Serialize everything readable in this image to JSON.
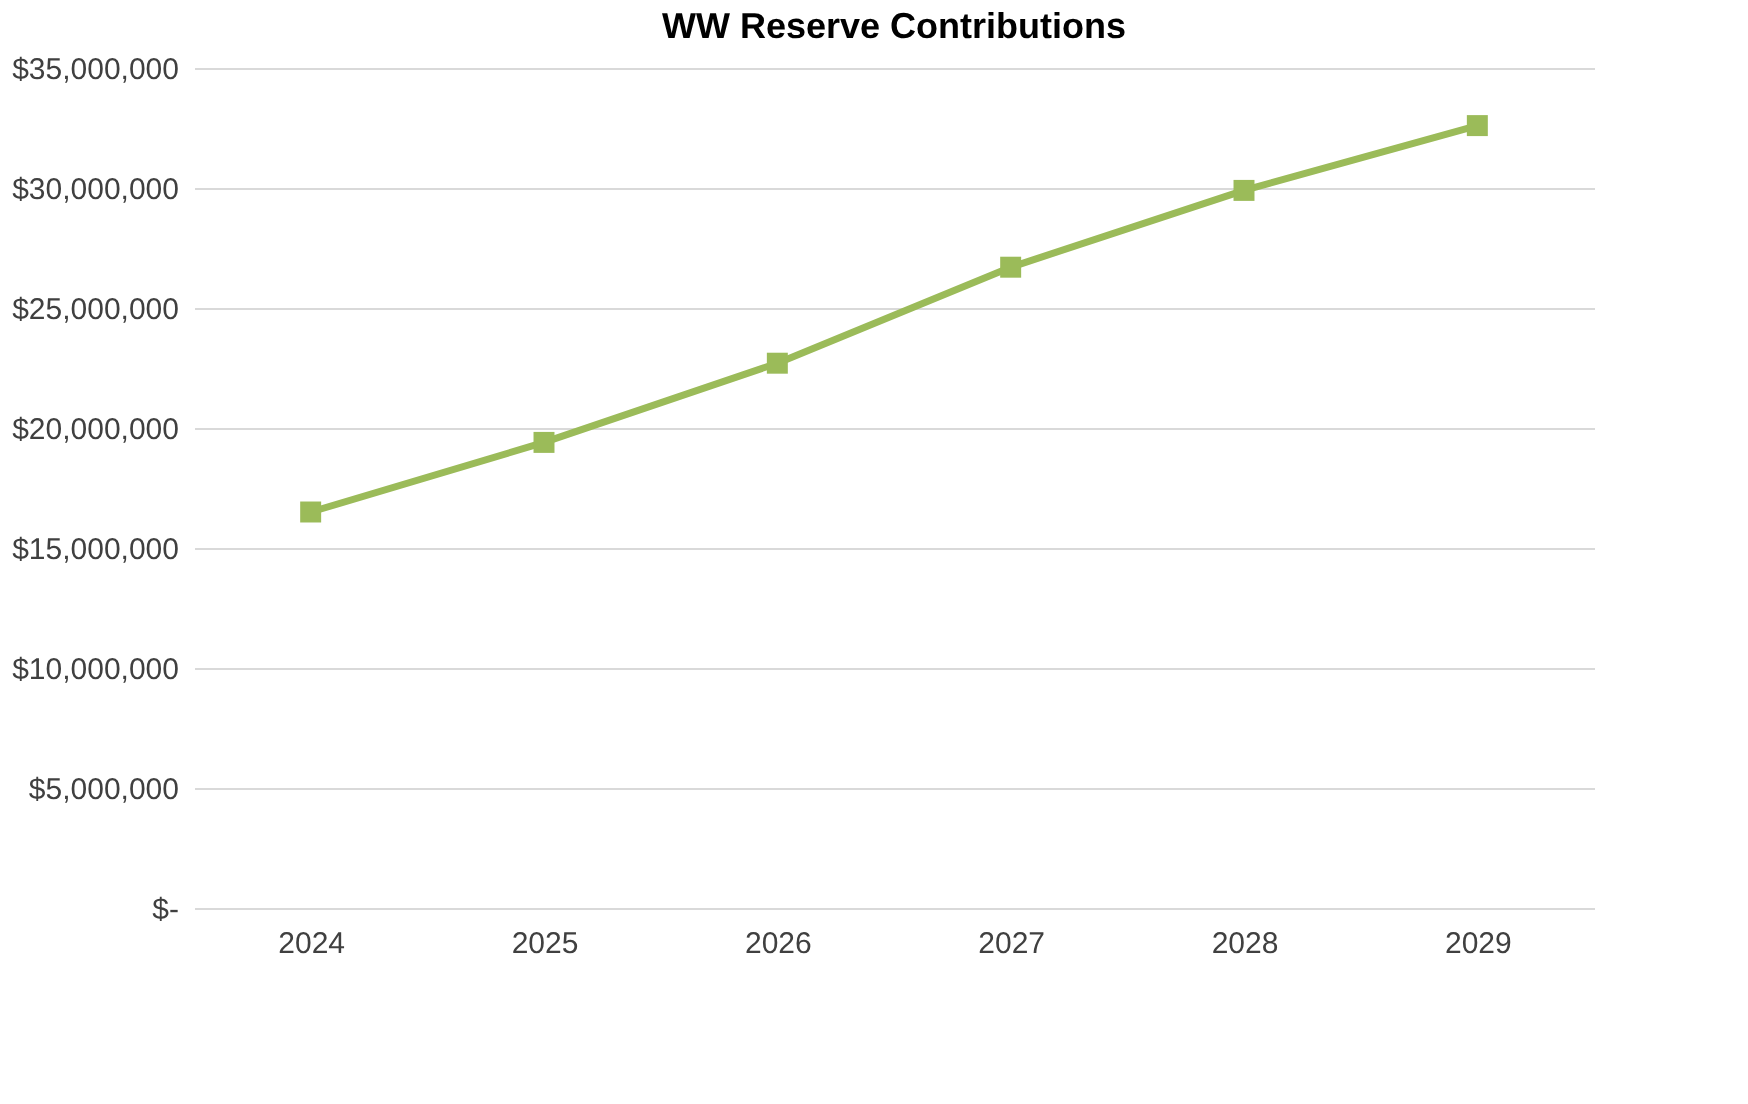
{
  "chart_data": {
    "type": "line",
    "title": "WW Reserve Contributions",
    "categories": [
      "2024",
      "2025",
      "2026",
      "2027",
      "2028",
      "2029"
    ],
    "series": [
      {
        "color": "#9bbb59",
        "values": [
          16500000,
          19400000,
          22700000,
          26700000,
          29900000,
          32600000
        ]
      }
    ],
    "ylim": [
      0,
      35000000
    ],
    "yticks": [
      {
        "value": 0,
        "label": "$-"
      },
      {
        "value": 5000000,
        "label": "$5,000,000"
      },
      {
        "value": 10000000,
        "label": "$10,000,000"
      },
      {
        "value": 15000000,
        "label": "$15,000,000"
      },
      {
        "value": 20000000,
        "label": "$20,000,000"
      },
      {
        "value": 25000000,
        "label": "$25,000,000"
      },
      {
        "value": 30000000,
        "label": "$30,000,000"
      },
      {
        "value": 35000000,
        "label": "$35,000,000"
      }
    ],
    "grid": "y",
    "marker": "square",
    "line_style": "solid"
  }
}
